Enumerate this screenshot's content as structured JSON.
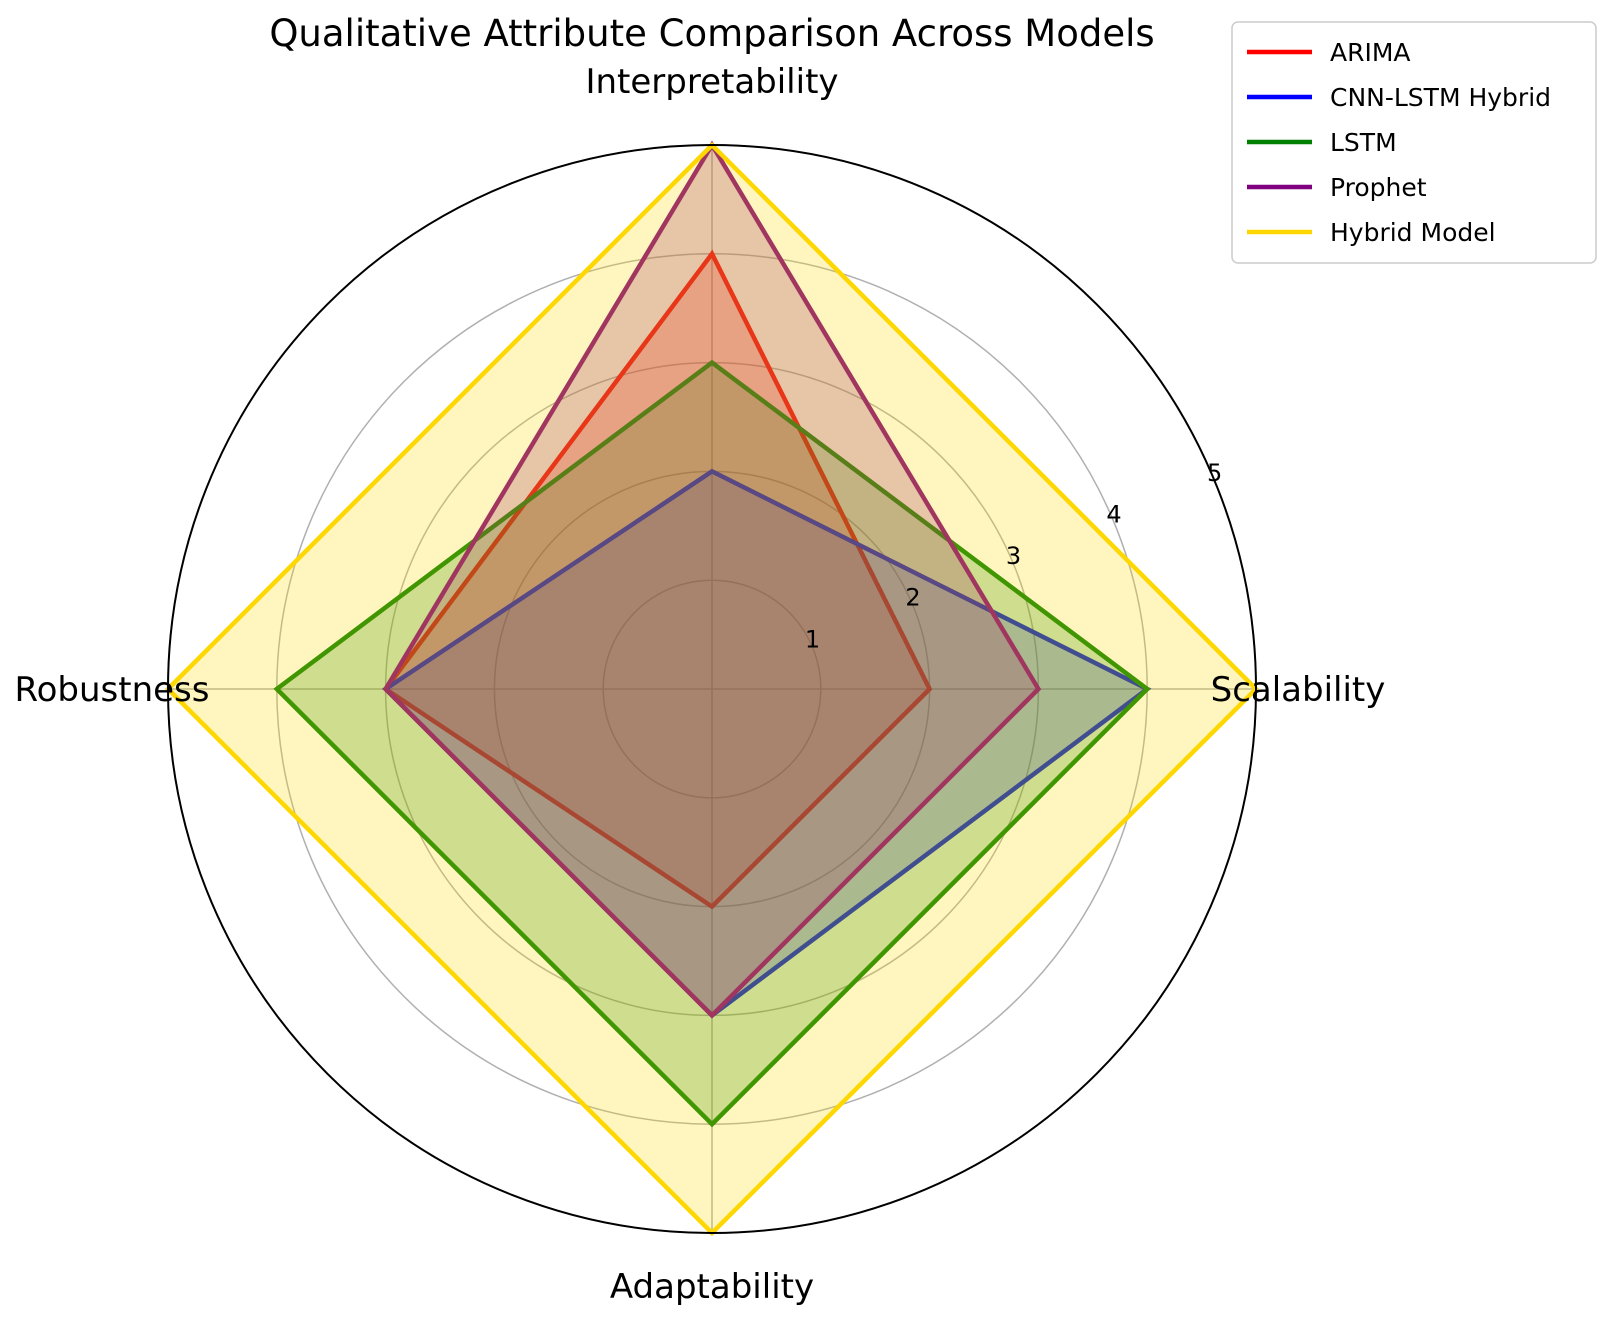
{
  "chart_data": {
    "type": "radar",
    "title": "Qualitative Attribute Comparison Across Models",
    "axes": [
      "Scalability",
      "Interpretability",
      "Robustness",
      "Adaptability"
    ],
    "rmax": 5,
    "ticks": [
      "1",
      "2",
      "3",
      "4",
      "5"
    ],
    "grid": true,
    "legend_position": "top-right",
    "series": [
      {
        "name": "ARIMA",
        "values": [
          2,
          4,
          3,
          2
        ],
        "color": "#ff0000",
        "fill_opacity": 0.25
      },
      {
        "name": "CNN-LSTM Hybrid",
        "values": [
          4,
          2,
          3,
          3
        ],
        "color": "#0000ff",
        "fill_opacity": 0.25
      },
      {
        "name": "LSTM",
        "values": [
          4,
          3,
          4,
          4
        ],
        "color": "#008000",
        "fill_opacity": 0.25
      },
      {
        "name": "Prophet",
        "values": [
          3,
          5,
          3,
          3
        ],
        "color": "#800080",
        "fill_opacity": 0.25
      },
      {
        "name": "Hybrid Model",
        "values": [
          5,
          5,
          5,
          5
        ],
        "color": "#ffd700",
        "fill_opacity": 0.25
      }
    ]
  }
}
